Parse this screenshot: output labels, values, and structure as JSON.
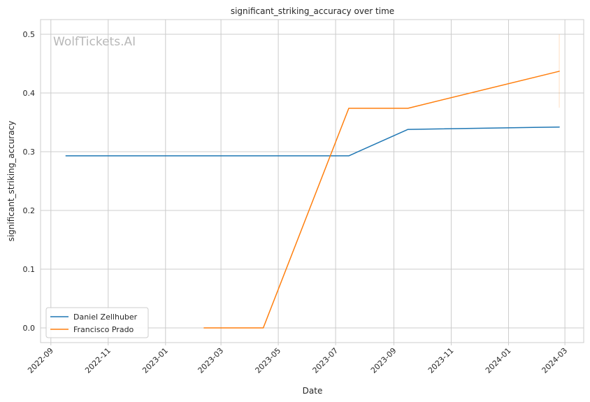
{
  "chart_data": {
    "type": "line",
    "title": "significant_striking_accuracy over time",
    "xlabel": "Date",
    "ylabel": "significant_striking_accuracy",
    "watermark": "WolfTickets.AI",
    "grid": true,
    "legend_position": "lower-left",
    "xlim": [
      "2022-08-21",
      "2024-03-21"
    ],
    "ylim": [
      -0.025,
      0.525
    ],
    "x_ticks": [
      "2022-09",
      "2022-11",
      "2023-01",
      "2023-03",
      "2023-05",
      "2023-07",
      "2023-09",
      "2023-11",
      "2024-01",
      "2024-03"
    ],
    "y_ticks": [
      "0.0",
      "0.1",
      "0.2",
      "0.3",
      "0.4",
      "0.5"
    ],
    "series": [
      {
        "name": "Daniel Zellhuber",
        "color": "#1f77b4",
        "x": [
          "2022-09-17",
          "2023-07-15",
          "2023-09-16",
          "2024-02-24"
        ],
        "y": [
          0.293,
          0.293,
          0.338,
          0.342
        ]
      },
      {
        "name": "Francisco Prado",
        "color": "#ff7f0e",
        "x": [
          "2023-02-11",
          "2023-04-15",
          "2023-07-15",
          "2023-09-16",
          "2024-02-24"
        ],
        "y": [
          0.0,
          0.0,
          0.374,
          0.374,
          0.437
        ]
      }
    ],
    "error_band": {
      "series": "Francisco Prado",
      "x": "2024-02-24",
      "y_low": 0.375,
      "y_high": 0.5
    }
  }
}
